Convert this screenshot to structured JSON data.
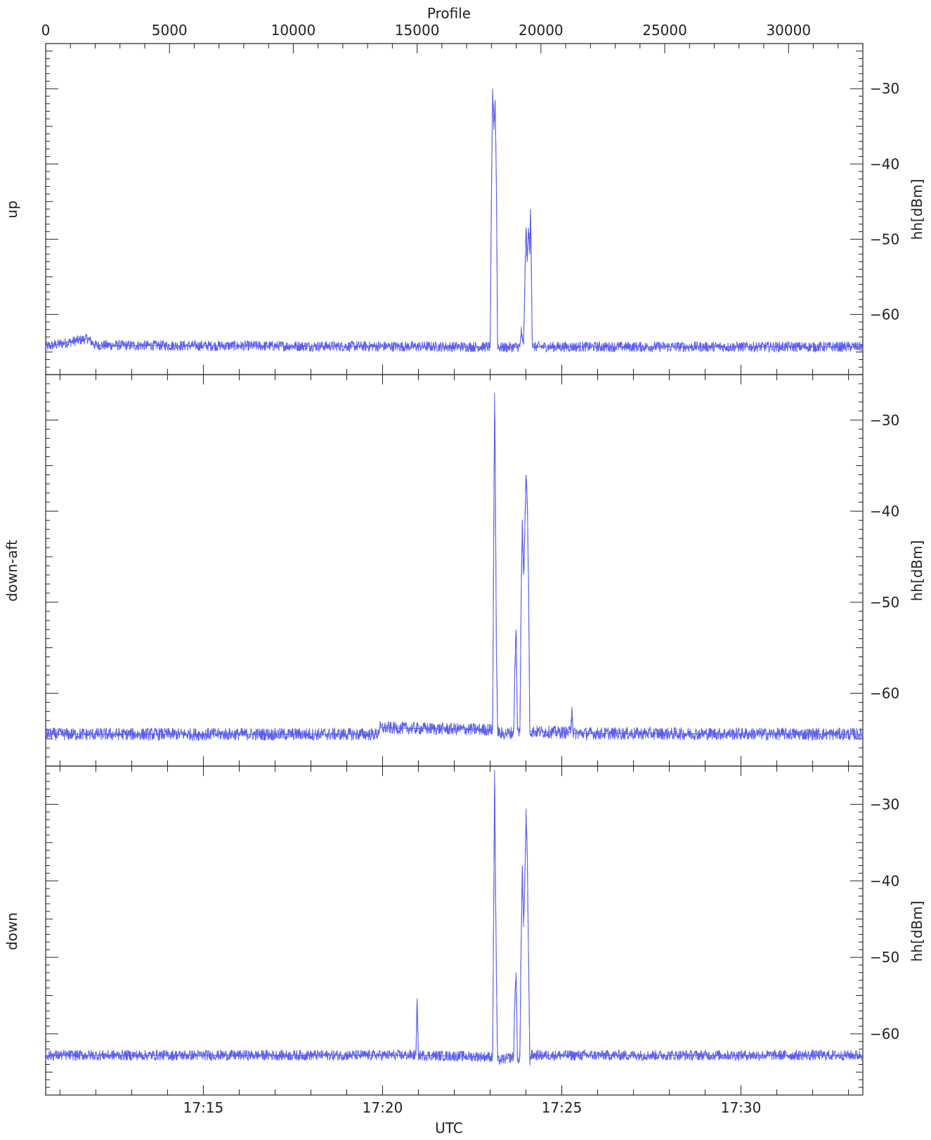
{
  "colors": {
    "trace": "#5a5ef0",
    "axis": "#222222",
    "background": "#ffffff"
  },
  "figure": {
    "top_axis_label": "Profile",
    "bottom_axis_label": "UTC",
    "right_axis_label": "hh[dBm]"
  },
  "chart_data": [
    {
      "type": "line",
      "panel_label": "up",
      "ylabel": "hh[dBm]",
      "xlabel": "UTC",
      "x_top_label": "Profile",
      "x_top_range": [
        0,
        33000
      ],
      "x_top_ticks": [
        0,
        5000,
        10000,
        15000,
        20000,
        25000,
        30000
      ],
      "x_time_range": [
        "17:10:36",
        "17:33:24"
      ],
      "x_time_ticks": [
        "17:15",
        "17:20",
        "17:25",
        "17:30"
      ],
      "ylim": [
        -68,
        -24
      ],
      "y_ticks": [
        -30,
        -40,
        -50,
        -60
      ],
      "baseline_dbm": -64.3,
      "noise_amplitude_dbm": 0.7,
      "series": [
        {
          "values_profile_dbm": [
            [
              0,
              -64.3
            ],
            [
              1700,
              -63.2
            ],
            [
              2000,
              -64.1
            ],
            [
              17950,
              -64.3
            ],
            [
              18000,
              -45.0
            ],
            [
              18050,
              -30.0
            ],
            [
              18100,
              -35.0
            ],
            [
              18150,
              -31.5
            ],
            [
              18200,
              -42.0
            ],
            [
              18250,
              -64.0
            ],
            [
              18300,
              -64.4
            ],
            [
              19150,
              -64.3
            ],
            [
              19200,
              -62.5
            ],
            [
              19300,
              -64.0
            ],
            [
              19350,
              -56.0
            ],
            [
              19400,
              -48.5
            ],
            [
              19450,
              -53.0
            ],
            [
              19500,
              -48.5
            ],
            [
              19550,
              -52.0
            ],
            [
              19580,
              -46.0
            ],
            [
              19600,
              -50.0
            ],
            [
              19650,
              -64.0
            ],
            [
              19700,
              -64.3
            ],
            [
              33000,
              -64.3
            ]
          ]
        }
      ]
    },
    {
      "type": "line",
      "panel_label": "down-aft",
      "ylabel": "hh[dBm]",
      "ylim": [
        -68,
        -25
      ],
      "y_ticks": [
        -30,
        -40,
        -50,
        -60
      ],
      "baseline_dbm": -64.5,
      "noise_amplitude_dbm": 0.7,
      "series": [
        {
          "values_profile_dbm": [
            [
              0,
              -64.5
            ],
            [
              13400,
              -64.5
            ],
            [
              13500,
              -63.8
            ],
            [
              18050,
              -64.0
            ],
            [
              18100,
              -40.0
            ],
            [
              18130,
              -27.0
            ],
            [
              18160,
              -36.0
            ],
            [
              18200,
              -55.0
            ],
            [
              18250,
              -64.0
            ],
            [
              18350,
              -64.5
            ],
            [
              18900,
              -64.3
            ],
            [
              18950,
              -57.0
            ],
            [
              19000,
              -53.0
            ],
            [
              19050,
              -64.0
            ],
            [
              19150,
              -64.3
            ],
            [
              19200,
              -50.0
            ],
            [
              19250,
              -41.0
            ],
            [
              19300,
              -47.0
            ],
            [
              19350,
              -42.0
            ],
            [
              19400,
              -36.0
            ],
            [
              19450,
              -39.0
            ],
            [
              19500,
              -48.0
            ],
            [
              19550,
              -64.0
            ],
            [
              19600,
              -64.2
            ],
            [
              21200,
              -64.3
            ],
            [
              21250,
              -61.5
            ],
            [
              21300,
              -64.4
            ],
            [
              33000,
              -64.5
            ]
          ]
        }
      ]
    },
    {
      "type": "line",
      "panel_label": "down",
      "ylabel": "hh[dBm]",
      "ylim": [
        -68,
        -25
      ],
      "y_ticks": [
        -30,
        -40,
        -50,
        -60
      ],
      "baseline_dbm": -62.8,
      "noise_amplitude_dbm": 0.7,
      "series": [
        {
          "values_profile_dbm": [
            [
              0,
              -62.8
            ],
            [
              14950,
              -62.8
            ],
            [
              15000,
              -55.8
            ],
            [
              15050,
              -62.8
            ],
            [
              18050,
              -63.0
            ],
            [
              18100,
              -40.0
            ],
            [
              18130,
              -25.5
            ],
            [
              18160,
              -38.0
            ],
            [
              18200,
              -52.0
            ],
            [
              18250,
              -63.5
            ],
            [
              18900,
              -63.0
            ],
            [
              18950,
              -55.0
            ],
            [
              19000,
              -52.0
            ],
            [
              19050,
              -63.5
            ],
            [
              19150,
              -63.0
            ],
            [
              19200,
              -48.0
            ],
            [
              19250,
              -38.0
            ],
            [
              19300,
              -46.0
            ],
            [
              19350,
              -40.0
            ],
            [
              19400,
              -31.5
            ],
            [
              19450,
              -37.0
            ],
            [
              19500,
              -50.0
            ],
            [
              19550,
              -63.5
            ],
            [
              19600,
              -62.8
            ],
            [
              33000,
              -62.8
            ]
          ]
        }
      ]
    }
  ]
}
